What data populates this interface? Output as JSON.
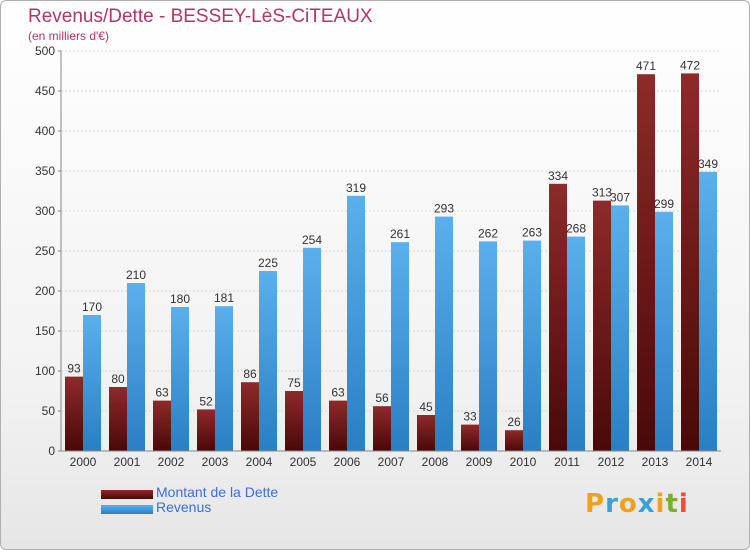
{
  "title": "Revenus/Dette - BESSEY-LèS-CiTEAUX",
  "subtitle": "(en milliers d'€)",
  "logo": {
    "text": "Proxiti",
    "letters": [
      "P",
      "r",
      "o",
      "x",
      "i",
      "t",
      "i"
    ],
    "colors": [
      "#f0a020",
      "#3aa0d8",
      "#f0a020",
      "#3aa0d8",
      "#f0a020",
      "#7ab030",
      "#e85030"
    ]
  },
  "chart_data": {
    "type": "bar",
    "categories": [
      "2000",
      "2001",
      "2002",
      "2003",
      "2004",
      "2005",
      "2006",
      "2007",
      "2008",
      "2009",
      "2010",
      "2011",
      "2012",
      "2013",
      "2014"
    ],
    "series": [
      {
        "name": "Montant de la Dette",
        "color": "#7a1f1f",
        "values": [
          93,
          80,
          63,
          52,
          86,
          75,
          63,
          56,
          45,
          33,
          26,
          334,
          313,
          471,
          472
        ]
      },
      {
        "name": "Revenus",
        "color": "#3d9be0",
        "values": [
          170,
          210,
          180,
          181,
          225,
          254,
          319,
          261,
          293,
          262,
          263,
          268,
          307,
          299,
          349
        ]
      }
    ],
    "ylim": [
      0,
      500
    ],
    "yticks": [
      0,
      50,
      100,
      150,
      200,
      250,
      300,
      350,
      400,
      450,
      500
    ],
    "grid": true,
    "legend": "bottom-left"
  }
}
